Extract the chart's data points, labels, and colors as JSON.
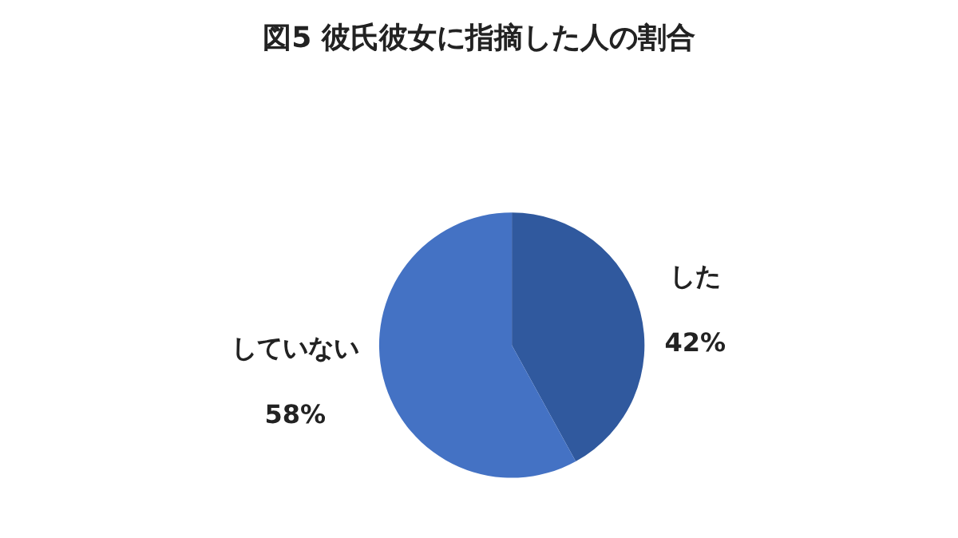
{
  "chart_data": {
    "type": "pie",
    "title": "図5 彼氏彼女に指摘した人の割合",
    "categories": [
      "した",
      "していない"
    ],
    "values": [
      42,
      58
    ],
    "value_labels": [
      "42%",
      "58%"
    ],
    "colors": [
      "#30599e",
      "#4472c4"
    ],
    "legend": false
  }
}
